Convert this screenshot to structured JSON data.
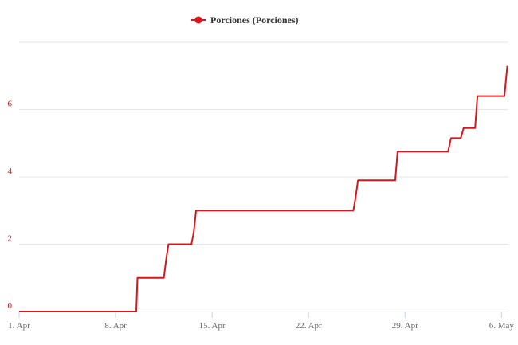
{
  "chart_data": {
    "type": "line",
    "legend": {
      "position": "top-center",
      "marker": "circle"
    },
    "grid": {
      "horizontal": true,
      "vertical": false
    },
    "colors": {
      "series": "#d9161c",
      "ytick": "#d9161c",
      "xtick": "#666666",
      "grid": "#e6e6e6",
      "axis": "#c8d2dc"
    },
    "x_ticks": [
      "1. Apr",
      "8. Apr",
      "15. Apr",
      "22. Apr",
      "29. Apr",
      "6. May"
    ],
    "xlim": [
      "2024-04-01",
      "2024-05-06T12:00"
    ],
    "y_ticks": [
      "0",
      "2",
      "4",
      "6"
    ],
    "ylim": [
      0,
      8
    ],
    "series": [
      {
        "name": "Porciones (Porciones)",
        "interpolation": "step",
        "points": [
          [
            "2024-04-01T00:00",
            0
          ],
          [
            "2024-04-09T12:00",
            0
          ],
          [
            "2024-04-09T14:00",
            1.0
          ],
          [
            "2024-04-11T12:00",
            1.0
          ],
          [
            "2024-04-11T16:00",
            1.55
          ],
          [
            "2024-04-11T20:00",
            2.0
          ],
          [
            "2024-04-13T12:00",
            2.0
          ],
          [
            "2024-04-13T16:00",
            2.35
          ],
          [
            "2024-04-13T20:00",
            3.0
          ],
          [
            "2024-04-25T06:00",
            3.0
          ],
          [
            "2024-04-25T10:00",
            3.4
          ],
          [
            "2024-04-25T14:00",
            3.9
          ],
          [
            "2024-04-28T07:00",
            3.9
          ],
          [
            "2024-04-28T11:00",
            4.75
          ],
          [
            "2024-05-02T03:00",
            4.75
          ],
          [
            "2024-05-02T08:00",
            5.15
          ],
          [
            "2024-05-03T01:00",
            5.15
          ],
          [
            "2024-05-03T06:00",
            5.45
          ],
          [
            "2024-05-04T02:00",
            5.45
          ],
          [
            "2024-05-04T06:00",
            6.4
          ],
          [
            "2024-05-06T05:00",
            6.4
          ],
          [
            "2024-05-06T10:00",
            7.3
          ]
        ]
      }
    ]
  }
}
